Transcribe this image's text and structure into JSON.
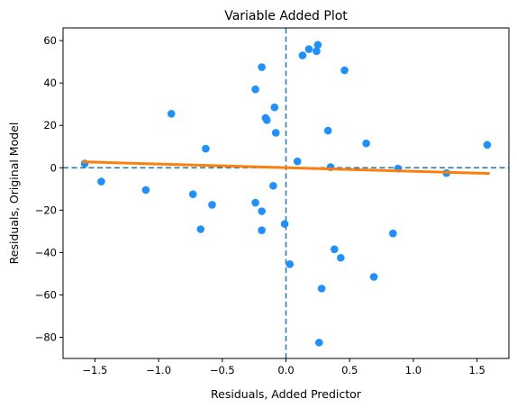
{
  "chart_data": {
    "type": "scatter",
    "title": "Variable Added Plot",
    "xlabel": "Residuals, Added Predictor",
    "ylabel": "Residuals, Original Model",
    "xlim": [
      -1.75,
      1.75
    ],
    "ylim": [
      -90,
      66
    ],
    "xticks": [
      -1.5,
      -1.0,
      -0.5,
      0.0,
      0.5,
      1.0,
      1.5
    ],
    "xtick_labels": [
      "−1.5",
      "−1.0",
      "−0.5",
      "0.0",
      "0.5",
      "1.0",
      "1.5"
    ],
    "yticks": [
      -80,
      -60,
      -40,
      -20,
      0,
      20,
      40,
      60
    ],
    "ytick_labels": [
      "−80",
      "−60",
      "−40",
      "−20",
      "0",
      "20",
      "40",
      "60"
    ],
    "grid": false,
    "reference_lines": {
      "x": 0,
      "y": 0,
      "style": "dashed"
    },
    "points": [
      {
        "x": -1.58,
        "y": 2
      },
      {
        "x": -1.45,
        "y": -6.5
      },
      {
        "x": -1.1,
        "y": -10.5
      },
      {
        "x": -0.9,
        "y": 25.5
      },
      {
        "x": -0.73,
        "y": -12.5
      },
      {
        "x": -0.67,
        "y": -29
      },
      {
        "x": -0.63,
        "y": 9
      },
      {
        "x": -0.58,
        "y": -17.5
      },
      {
        "x": -0.24,
        "y": 37
      },
      {
        "x": -0.24,
        "y": -16.5
      },
      {
        "x": -0.19,
        "y": 47.5
      },
      {
        "x": -0.19,
        "y": -20.5
      },
      {
        "x": -0.19,
        "y": -29.5
      },
      {
        "x": -0.16,
        "y": 23.5
      },
      {
        "x": -0.15,
        "y": 22.5
      },
      {
        "x": -0.1,
        "y": -8.5
      },
      {
        "x": -0.09,
        "y": 28.5
      },
      {
        "x": -0.08,
        "y": 16.5
      },
      {
        "x": -0.01,
        "y": -26.5
      },
      {
        "x": 0.03,
        "y": -45.5
      },
      {
        "x": 0.09,
        "y": 3
      },
      {
        "x": 0.13,
        "y": 53
      },
      {
        "x": 0.18,
        "y": 56
      },
      {
        "x": 0.24,
        "y": 55
      },
      {
        "x": 0.25,
        "y": 58
      },
      {
        "x": 0.26,
        "y": -82.5
      },
      {
        "x": 0.28,
        "y": -57
      },
      {
        "x": 0.33,
        "y": 17.5
      },
      {
        "x": 0.35,
        "y": 0.3
      },
      {
        "x": 0.38,
        "y": -38.5
      },
      {
        "x": 0.43,
        "y": -42.5
      },
      {
        "x": 0.46,
        "y": 46
      },
      {
        "x": 0.63,
        "y": 11.5
      },
      {
        "x": 0.69,
        "y": -51.5
      },
      {
        "x": 0.84,
        "y": -31
      },
      {
        "x": 0.88,
        "y": -0.4
      },
      {
        "x": 1.26,
        "y": -2.5
      },
      {
        "x": 1.58,
        "y": 10.8
      }
    ],
    "fit_line": {
      "x": [
        -1.6,
        1.6
      ],
      "y": [
        2.8,
        -2.7
      ]
    },
    "colors": {
      "points": "#1e90ff",
      "fit_line": "#ff7f0e",
      "reference_lines": "#1f77b4",
      "axes": "#000000"
    }
  }
}
